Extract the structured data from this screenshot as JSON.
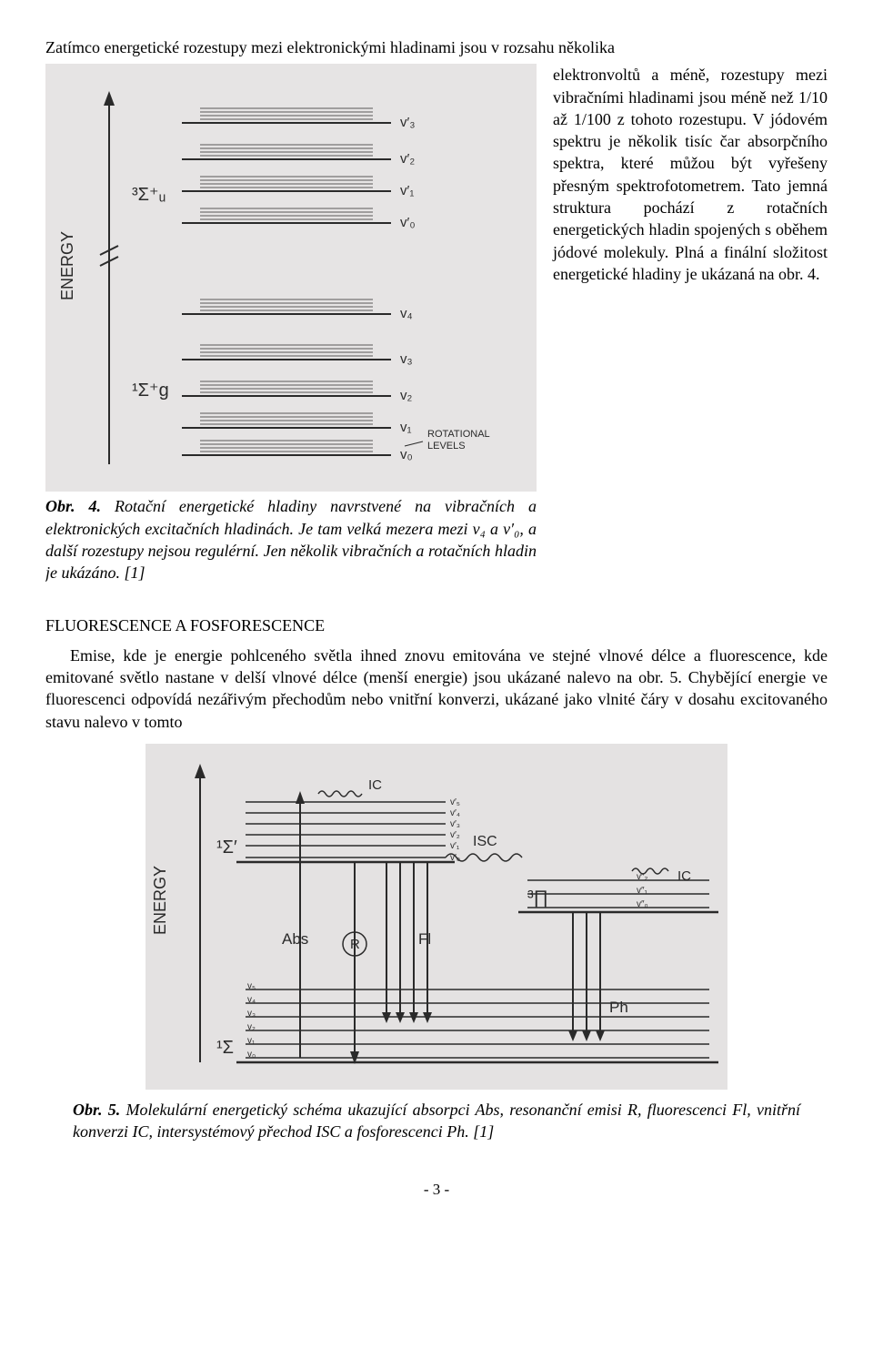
{
  "top_line": "Zatímco energetické rozestupy mezi elektronickými hladinami jsou v rozsahu několika",
  "right_text": "elektronvoltů a méně, rozestupy mezi vibračními hladinami jsou méně než 1/10 až 1/100 z tohoto rozestupu. V jódovém spektru je několik tisíc čar absorpčního spektra, které můžou být vyřešeny přesným spektrofotometrem. Tato jemná struktura pochází z rotačních energetických hladin spojených s oběhem jódové molekuly. Plná a finální složitost energetické hladiny je ukázaná na obr. 4.",
  "fig4": {
    "caption_bold": "Obr. 4.",
    "caption_text": " Rotační energetické hladiny navrstvené na vibračních a elektronických excitačních hladinách. Je tam velká mezera mezi v₄ a v′₀, a další rozestupy nejsou regulérní. Jen několik vibračních a rotačních hladin je ukázáno. [1]",
    "y_axis": "ENERGY",
    "state_upper": "³Σ⁺ᵤ",
    "state_lower": "¹Σ⁺g",
    "rot_label": "ROTATIONAL\nLEVELS",
    "upper_levels": [
      "v′₃",
      "v′₂",
      "v′₁",
      "v′₀"
    ],
    "lower_levels": [
      "v₄",
      "v₃",
      "v₂",
      "v₁",
      "v₀"
    ],
    "colors": {
      "bg": "#e6e4e4",
      "line": "#2a2a2a"
    }
  },
  "section_head": "FLUORESCENCE A FOSFORESCENCE",
  "para2": "Emise, kde je energie pohlceného světla ihned znovu emitována ve stejné vlnové délce a fluorescence, kde emitované světlo nastane v delší vlnové délce (menší energie) jsou ukázané nalevo na obr. 5. Chybějící energie ve fluorescenci odpovídá nezářivým přechodům nebo vnitřní konverzi, ukázané jako vlnité čáry v dosahu excitovaného stavu nalevo v tomto",
  "fig5": {
    "caption_bold": "Obr. 5.",
    "caption_text": " Molekulární energetický schéma ukazující absorpci Abs, resonanční emisi R, fluorescenci Fl, vnitřní konverzi IC, intersystémový přechod ISC a fosforescenci Ph. [1]",
    "y_axis": "ENERGY",
    "labels": {
      "s1": "¹Σ′",
      "s0": "¹Σ",
      "t1": "³∏",
      "abs": "Abs",
      "r": "R",
      "fl": "Fl",
      "ic1": "IC",
      "isc": "ISC",
      "ic2": "IC",
      "ph": "Ph"
    },
    "upper_levels": [
      "v′₅",
      "v′₄",
      "v′₃",
      "v′₂",
      "v′₁",
      "v′₀"
    ],
    "triplet_levels": [
      "v″₂",
      "v″₁",
      "v″₀"
    ],
    "ground_levels": [
      "v₅",
      "v₄",
      "v₃",
      "v₂",
      "v₁",
      "v₀"
    ],
    "colors": {
      "bg": "#e4e2e2",
      "line": "#2a2a2a"
    }
  },
  "page_number": "- 3 -"
}
